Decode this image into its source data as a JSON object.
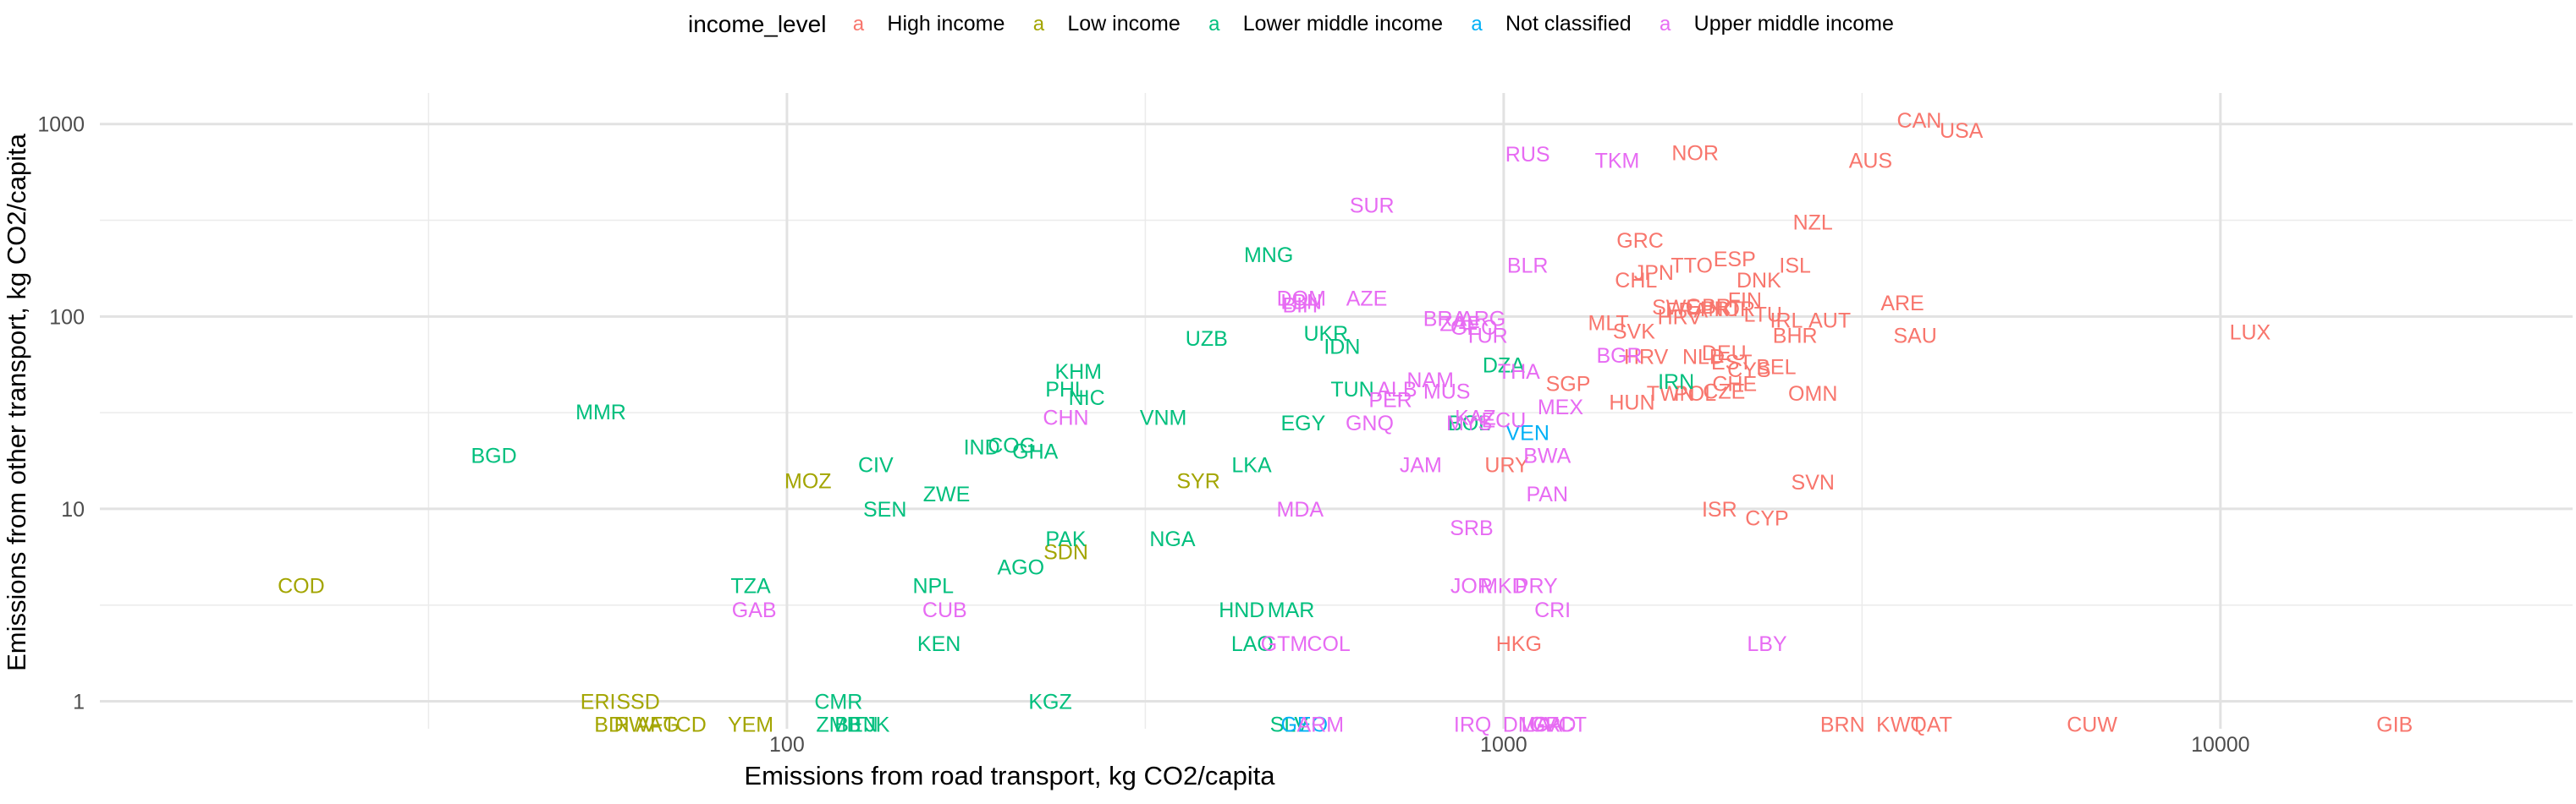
{
  "chart_data": {
    "type": "scatter",
    "title": "",
    "xlabel": "Emissions from road transport, kg CO2/capita",
    "ylabel": "Emissions from other transport, kg CO2/capita",
    "x_scale": "log10",
    "y_scale": "log10",
    "xlim": [
      11,
      31000
    ],
    "ylim": [
      0.72,
      1450
    ],
    "x_ticks": [
      {
        "value": 100,
        "label": "100"
      },
      {
        "value": 1000,
        "label": "1000"
      },
      {
        "value": 10000,
        "label": "10000"
      }
    ],
    "y_ticks": [
      {
        "value": 1,
        "label": "1"
      },
      {
        "value": 10,
        "label": "10"
      },
      {
        "value": 100,
        "label": "100"
      },
      {
        "value": 1000,
        "label": "1000"
      }
    ],
    "grid": true,
    "legend": {
      "title": "income_level",
      "placement": "top",
      "key_glyph": "a",
      "entries": [
        {
          "name": "High income",
          "color": "#F8766D"
        },
        {
          "name": "Low income",
          "color": "#A3A500"
        },
        {
          "name": "Lower middle income",
          "color": "#00BF7D"
        },
        {
          "name": "Not classified",
          "color": "#00B0F6"
        },
        {
          "name": "Upper middle income",
          "color": "#E76BF3"
        }
      ]
    },
    "series": [
      {
        "name": "High income",
        "color": "#F8766D",
        "points": [
          {
            "label": "CAN",
            "x": 3800,
            "y": 1050
          },
          {
            "label": "USA",
            "x": 4350,
            "y": 930
          },
          {
            "label": "AUS",
            "x": 3250,
            "y": 650
          },
          {
            "label": "NOR",
            "x": 1850,
            "y": 710
          },
          {
            "label": "NZL",
            "x": 2700,
            "y": 310
          },
          {
            "label": "GRC",
            "x": 1550,
            "y": 250
          },
          {
            "label": "ESP",
            "x": 2100,
            "y": 200
          },
          {
            "label": "TTO",
            "x": 1830,
            "y": 185
          },
          {
            "label": "JPN",
            "x": 1620,
            "y": 170
          },
          {
            "label": "ISL",
            "x": 2550,
            "y": 185
          },
          {
            "label": "CHL",
            "x": 1530,
            "y": 155
          },
          {
            "label": "DNK",
            "x": 2270,
            "y": 155
          },
          {
            "label": "ARE",
            "x": 3600,
            "y": 118
          },
          {
            "label": "FIN",
            "x": 2170,
            "y": 122
          },
          {
            "label": "SWE",
            "x": 1740,
            "y": 112
          },
          {
            "label": "GBR",
            "x": 1930,
            "y": 113
          },
          {
            "label": "FRA",
            "x": 1800,
            "y": 108
          },
          {
            "label": "PRT",
            "x": 2010,
            "y": 110
          },
          {
            "label": "NOR",
            "x": 2080,
            "y": 110
          },
          {
            "label": "LTU",
            "x": 2300,
            "y": 103
          },
          {
            "label": "HRV",
            "x": 1760,
            "y": 100
          },
          {
            "label": "IRL",
            "x": 2480,
            "y": 96
          },
          {
            "label": "AUT",
            "x": 2850,
            "y": 96
          },
          {
            "label": "MLT",
            "x": 1400,
            "y": 93
          },
          {
            "label": "SVK",
            "x": 1520,
            "y": 84
          },
          {
            "label": "BHR",
            "x": 2550,
            "y": 80
          },
          {
            "label": "SAU",
            "x": 3750,
            "y": 80
          },
          {
            "label": "LUX",
            "x": 11000,
            "y": 83
          },
          {
            "label": "HRV",
            "x": 1580,
            "y": 62
          },
          {
            "label": "NLD",
            "x": 1900,
            "y": 62
          },
          {
            "label": "DEU",
            "x": 2030,
            "y": 65
          },
          {
            "label": "EST",
            "x": 2080,
            "y": 58
          },
          {
            "label": "CYS",
            "x": 2200,
            "y": 53
          },
          {
            "label": "BEL",
            "x": 2400,
            "y": 55
          },
          {
            "label": "SGP",
            "x": 1230,
            "y": 45
          },
          {
            "label": "CHE",
            "x": 2100,
            "y": 45
          },
          {
            "label": "HUN",
            "x": 1510,
            "y": 36
          },
          {
            "label": "TWN",
            "x": 1710,
            "y": 40
          },
          {
            "label": "POL",
            "x": 1850,
            "y": 40
          },
          {
            "label": "CZE",
            "x": 2030,
            "y": 41
          },
          {
            "label": "OMN",
            "x": 2700,
            "y": 40
          },
          {
            "label": "URY",
            "x": 1010,
            "y": 17
          },
          {
            "label": "SVN",
            "x": 2700,
            "y": 13.8
          },
          {
            "label": "ISR",
            "x": 2000,
            "y": 10
          },
          {
            "label": "CYP",
            "x": 2330,
            "y": 9
          },
          {
            "label": "HKG",
            "x": 1050,
            "y": 2.0
          },
          {
            "label": "BRN",
            "x": 2970,
            "y": 0.76
          },
          {
            "label": "KWT",
            "x": 3570,
            "y": 0.76
          },
          {
            "label": "QAT",
            "x": 3950,
            "y": 0.76
          },
          {
            "label": "CUW",
            "x": 6620,
            "y": 0.76
          },
          {
            "label": "GIB",
            "x": 17500,
            "y": 0.76
          }
        ]
      },
      {
        "name": "Low income",
        "color": "#A3A500",
        "points": [
          {
            "label": "COD",
            "x": 21,
            "y": 4.0
          },
          {
            "label": "MOZ",
            "x": 107,
            "y": 14
          },
          {
            "label": "SYR",
            "x": 375,
            "y": 14
          },
          {
            "label": "SDN",
            "x": 245,
            "y": 6.0
          },
          {
            "label": "ERI",
            "x": 54.5,
            "y": 1.0
          },
          {
            "label": "SSD",
            "x": 62,
            "y": 1.0
          },
          {
            "label": "BDI",
            "x": 57,
            "y": 0.76
          },
          {
            "label": "RWA",
            "x": 62,
            "y": 0.76
          },
          {
            "label": "AFG",
            "x": 66,
            "y": 0.76
          },
          {
            "label": "TCD",
            "x": 72,
            "y": 0.76
          },
          {
            "label": "YEM",
            "x": 89,
            "y": 0.76
          }
        ]
      },
      {
        "name": "Lower middle income",
        "color": "#00BF7D",
        "points": [
          {
            "label": "MNG",
            "x": 470,
            "y": 210
          },
          {
            "label": "UKR",
            "x": 565,
            "y": 82
          },
          {
            "label": "IDN",
            "x": 595,
            "y": 70
          },
          {
            "label": "UZB",
            "x": 385,
            "y": 77
          },
          {
            "label": "KHM",
            "x": 255,
            "y": 52
          },
          {
            "label": "PHL",
            "x": 245,
            "y": 42
          },
          {
            "label": "NIC",
            "x": 262,
            "y": 38
          },
          {
            "label": "TUN",
            "x": 615,
            "y": 42
          },
          {
            "label": "DZA",
            "x": 1000,
            "y": 56
          },
          {
            "label": "IRN",
            "x": 1740,
            "y": 46
          },
          {
            "label": "MMR",
            "x": 55,
            "y": 32
          },
          {
            "label": "BGD",
            "x": 39,
            "y": 19
          },
          {
            "label": "VNM",
            "x": 335,
            "y": 30
          },
          {
            "label": "EGY",
            "x": 525,
            "y": 28
          },
          {
            "label": "IND",
            "x": 187,
            "y": 21
          },
          {
            "label": "COG",
            "x": 206,
            "y": 21.5
          },
          {
            "label": "GHA",
            "x": 222,
            "y": 20
          },
          {
            "label": "CIV",
            "x": 133,
            "y": 17
          },
          {
            "label": "LKA",
            "x": 445,
            "y": 17
          },
          {
            "label": "ZWE",
            "x": 167,
            "y": 12
          },
          {
            "label": "SEN",
            "x": 137,
            "y": 10
          },
          {
            "label": "PAK",
            "x": 245,
            "y": 7.0
          },
          {
            "label": "NGA",
            "x": 345,
            "y": 7.0
          },
          {
            "label": "AGO",
            "x": 212,
            "y": 5.0
          },
          {
            "label": "TZA",
            "x": 89,
            "y": 4.0
          },
          {
            "label": "NPL",
            "x": 160,
            "y": 4.0
          },
          {
            "label": "HND",
            "x": 431,
            "y": 3.0
          },
          {
            "label": "MAR",
            "x": 505,
            "y": 3.0
          },
          {
            "label": "KEN",
            "x": 163,
            "y": 2.0
          },
          {
            "label": "LAO",
            "x": 446,
            "y": 2.0
          },
          {
            "label": "CMR",
            "x": 118,
            "y": 1.0
          },
          {
            "label": "KGZ",
            "x": 233,
            "y": 1.0
          },
          {
            "label": "ZMB",
            "x": 118,
            "y": 0.76
          },
          {
            "label": "BEN",
            "x": 125,
            "y": 0.76
          },
          {
            "label": "TJK",
            "x": 131,
            "y": 0.76
          },
          {
            "label": "SLV",
            "x": 502,
            "y": 0.76
          },
          {
            "label": "BOL",
            "x": 895,
            "y": 28
          }
        ]
      },
      {
        "name": "Not classified",
        "color": "#00B0F6",
        "points": [
          {
            "label": "VEN",
            "x": 1080,
            "y": 25
          },
          {
            "label": "GEO",
            "x": 527,
            "y": 0.76
          }
        ]
      },
      {
        "name": "Upper middle income",
        "color": "#E76BF3",
        "points": [
          {
            "label": "RUS",
            "x": 1080,
            "y": 700
          },
          {
            "label": "TKM",
            "x": 1440,
            "y": 650
          },
          {
            "label": "SUR",
            "x": 655,
            "y": 380
          },
          {
            "label": "BLR",
            "x": 1080,
            "y": 185
          },
          {
            "label": "DOM",
            "x": 522,
            "y": 125
          },
          {
            "label": "LBN",
            "x": 522,
            "y": 120
          },
          {
            "label": "BIH",
            "x": 520,
            "y": 115
          },
          {
            "label": "AZE",
            "x": 644,
            "y": 125
          },
          {
            "label": "BRA",
            "x": 828,
            "y": 98
          },
          {
            "label": "ARG",
            "x": 935,
            "y": 98
          },
          {
            "label": "ZAF",
            "x": 868,
            "y": 92
          },
          {
            "label": "GEO",
            "x": 909,
            "y": 88
          },
          {
            "label": "TUR",
            "x": 945,
            "y": 80
          },
          {
            "label": "BGR",
            "x": 1450,
            "y": 63
          },
          {
            "label": "THA",
            "x": 1050,
            "y": 52
          },
          {
            "label": "NAM",
            "x": 790,
            "y": 47
          },
          {
            "label": "ALB",
            "x": 710,
            "y": 42
          },
          {
            "label": "MUS",
            "x": 833,
            "y": 41
          },
          {
            "label": "PER",
            "x": 695,
            "y": 37
          },
          {
            "label": "CHN",
            "x": 245,
            "y": 30
          },
          {
            "label": "GNQ",
            "x": 650,
            "y": 28
          },
          {
            "label": "MEX",
            "x": 1200,
            "y": 34
          },
          {
            "label": "KAZ",
            "x": 913,
            "y": 30
          },
          {
            "label": "ECU",
            "x": 1000,
            "y": 29
          },
          {
            "label": "MYS",
            "x": 895,
            "y": 28
          },
          {
            "label": "BWA",
            "x": 1150,
            "y": 19
          },
          {
            "label": "JAM",
            "x": 766,
            "y": 17
          },
          {
            "label": "PAN",
            "x": 1150,
            "y": 12
          },
          {
            "label": "MDA",
            "x": 520,
            "y": 10
          },
          {
            "label": "SRB",
            "x": 902,
            "y": 8.0
          },
          {
            "label": "JOR",
            "x": 902,
            "y": 4.0
          },
          {
            "label": "MKD",
            "x": 1000,
            "y": 4.0
          },
          {
            "label": "PRY",
            "x": 1110,
            "y": 4.0
          },
          {
            "label": "CRI",
            "x": 1170,
            "y": 3.0
          },
          {
            "label": "GAB",
            "x": 90,
            "y": 3.0
          },
          {
            "label": "CUB",
            "x": 166,
            "y": 3.0
          },
          {
            "label": "GTM",
            "x": 494,
            "y": 2.0
          },
          {
            "label": "COL",
            "x": 570,
            "y": 2.0
          },
          {
            "label": "LBY",
            "x": 2330,
            "y": 2.0
          },
          {
            "label": "ARM",
            "x": 555,
            "y": 0.76
          },
          {
            "label": "IRQ",
            "x": 905,
            "y": 0.76
          },
          {
            "label": "DMA",
            "x": 1075,
            "y": 0.76
          },
          {
            "label": "LCA",
            "x": 1130,
            "y": 0.76
          },
          {
            "label": "GRD",
            "x": 1170,
            "y": 0.76
          },
          {
            "label": "VCT",
            "x": 1220,
            "y": 0.76
          }
        ]
      }
    ]
  }
}
